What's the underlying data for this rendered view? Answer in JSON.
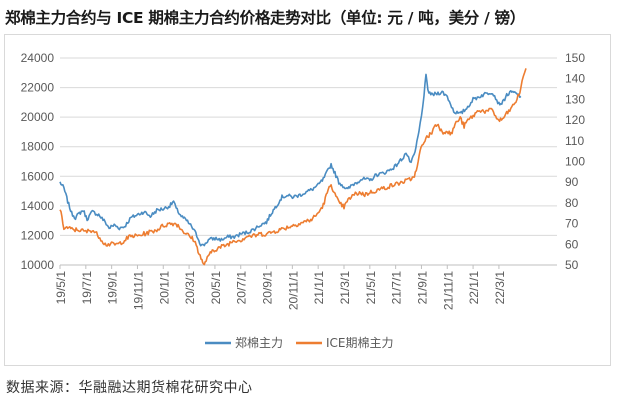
{
  "title": "郑棉主力合约与 ICE 期棉主力合约价格走势对比（单位: 元 / 吨，美分 / 镑）",
  "source": "数据来源：华融融达期货棉花研究中心",
  "colors": {
    "zce": "#4a8cc2",
    "ice": "#ed7d31",
    "grid": "#d9d9d9",
    "text": "#595959"
  },
  "chart_data": {
    "type": "line",
    "title": "郑棉主力合约与 ICE 期棉主力合约价格走势对比（单位: 元 / 吨，美分 / 镑）",
    "xlabel": "",
    "ylabel_left": "元/吨",
    "ylabel_right": "美分/镑",
    "x_ticks": [
      "19/5/1",
      "19/7/1",
      "19/9/1",
      "19/11/1",
      "20/1/1",
      "20/3/1",
      "20/5/1",
      "20/7/1",
      "20/9/1",
      "20/11/1",
      "21/1/1",
      "21/3/1",
      "21/5/1",
      "21/7/1",
      "21/9/1",
      "21/11/1",
      "22/1/1",
      "22/3/1"
    ],
    "x_range_months": [
      0,
      38.5
    ],
    "y_left": {
      "min": 10000,
      "max": 24000,
      "step": 2000,
      "ticks": [
        "10000",
        "12000",
        "14000",
        "16000",
        "18000",
        "20000",
        "22000",
        "24000"
      ]
    },
    "y_right": {
      "min": 50,
      "max": 150,
      "step": 10,
      "ticks": [
        "50",
        "60",
        "70",
        "80",
        "90",
        "100",
        "110",
        "120",
        "130",
        "140",
        "150"
      ]
    },
    "legend": "bottom",
    "series": [
      {
        "name": "郑棉主力",
        "axis": "left",
        "points": [
          [
            0,
            15600
          ],
          [
            0.3,
            15200
          ],
          [
            0.6,
            14300
          ],
          [
            0.9,
            13500
          ],
          [
            1.2,
            13200
          ],
          [
            1.5,
            13500
          ],
          [
            1.8,
            13700
          ],
          [
            2.1,
            13100
          ],
          [
            2.5,
            13600
          ],
          [
            3,
            13400
          ],
          [
            3.5,
            12900
          ],
          [
            3.8,
            12500
          ],
          [
            4.2,
            12700
          ],
          [
            4.6,
            12500
          ],
          [
            5,
            12600
          ],
          [
            5.5,
            13200
          ],
          [
            6,
            13400
          ],
          [
            6.5,
            13600
          ],
          [
            7,
            13300
          ],
          [
            7.5,
            13700
          ],
          [
            8,
            13800
          ],
          [
            8.5,
            14000
          ],
          [
            8.8,
            14300
          ],
          [
            9,
            13800
          ],
          [
            9.4,
            13300
          ],
          [
            9.8,
            13000
          ],
          [
            10.2,
            12600
          ],
          [
            10.6,
            12000
          ],
          [
            10.9,
            11400
          ],
          [
            11.1,
            11300
          ],
          [
            11.5,
            11700
          ],
          [
            12,
            11800
          ],
          [
            12.5,
            11700
          ],
          [
            13,
            11900
          ],
          [
            13.5,
            11900
          ],
          [
            14,
            12100
          ],
          [
            14.5,
            12200
          ],
          [
            15,
            12400
          ],
          [
            15.5,
            12700
          ],
          [
            16,
            12900
          ],
          [
            16.3,
            13400
          ],
          [
            16.6,
            13800
          ],
          [
            16.9,
            14200
          ],
          [
            17.2,
            14600
          ],
          [
            17.6,
            14700
          ],
          [
            18,
            14600
          ],
          [
            18.5,
            14700
          ],
          [
            19,
            14900
          ],
          [
            19.5,
            15100
          ],
          [
            20,
            15400
          ],
          [
            20.4,
            15800
          ],
          [
            20.7,
            16300
          ],
          [
            21,
            16800
          ],
          [
            21.3,
            16200
          ],
          [
            21.6,
            15600
          ],
          [
            22,
            15300
          ],
          [
            22.3,
            15100
          ],
          [
            22.6,
            15400
          ],
          [
            23,
            15600
          ],
          [
            23.3,
            15800
          ],
          [
            23.7,
            15800
          ],
          [
            24,
            15700
          ],
          [
            24.5,
            16100
          ],
          [
            25,
            16200
          ],
          [
            25.5,
            16400
          ],
          [
            26,
            16700
          ],
          [
            26.3,
            17000
          ],
          [
            26.6,
            17300
          ],
          [
            26.8,
            17600
          ],
          [
            27,
            17200
          ],
          [
            27.2,
            16900
          ],
          [
            27.5,
            17600
          ],
          [
            27.8,
            19000
          ],
          [
            28,
            20100
          ],
          [
            28.2,
            21500
          ],
          [
            28.35,
            22800
          ],
          [
            28.5,
            21800
          ],
          [
            28.8,
            21500
          ],
          [
            29.2,
            21600
          ],
          [
            29.6,
            21700
          ],
          [
            30,
            21400
          ],
          [
            30.5,
            20400
          ],
          [
            31,
            20200
          ],
          [
            31.5,
            20600
          ],
          [
            32,
            21200
          ],
          [
            32.5,
            21400
          ],
          [
            33,
            21600
          ],
          [
            33.5,
            21700
          ],
          [
            34,
            20900
          ],
          [
            34.3,
            21000
          ],
          [
            34.6,
            21500
          ],
          [
            35,
            21700
          ],
          [
            35.3,
            21600
          ],
          [
            35.7,
            21400
          ]
        ]
      },
      {
        "name": "ICE期棉主力",
        "axis": "right",
        "points": [
          [
            0,
            77
          ],
          [
            0.3,
            68
          ],
          [
            0.6,
            68
          ],
          [
            1,
            67
          ],
          [
            1.5,
            67
          ],
          [
            2,
            66
          ],
          [
            2.5,
            67
          ],
          [
            3,
            64
          ],
          [
            3.5,
            60
          ],
          [
            4,
            60
          ],
          [
            4.5,
            60
          ],
          [
            5,
            62
          ],
          [
            5.5,
            64
          ],
          [
            6,
            64
          ],
          [
            6.5,
            65
          ],
          [
            7,
            66
          ],
          [
            7.5,
            67
          ],
          [
            8,
            69
          ],
          [
            8.5,
            70
          ],
          [
            9,
            70
          ],
          [
            9.3,
            68
          ],
          [
            9.6,
            66
          ],
          [
            10,
            64
          ],
          [
            10.4,
            62
          ],
          [
            10.7,
            57
          ],
          [
            11,
            52
          ],
          [
            11.1,
            50
          ],
          [
            11.4,
            53
          ],
          [
            11.8,
            57
          ],
          [
            12.2,
            58
          ],
          [
            12.6,
            59
          ],
          [
            13,
            60
          ],
          [
            13.5,
            62
          ],
          [
            14,
            62
          ],
          [
            14.5,
            64
          ],
          [
            15,
            64
          ],
          [
            15.5,
            65
          ],
          [
            16,
            65
          ],
          [
            16.5,
            66
          ],
          [
            17,
            67
          ],
          [
            17.5,
            68
          ],
          [
            18,
            69
          ],
          [
            18.5,
            70
          ],
          [
            19,
            71
          ],
          [
            19.5,
            72
          ],
          [
            20,
            75
          ],
          [
            20.4,
            79
          ],
          [
            20.7,
            85
          ],
          [
            21,
            89
          ],
          [
            21.3,
            84
          ],
          [
            21.6,
            80
          ],
          [
            22,
            78
          ],
          [
            22.4,
            82
          ],
          [
            22.8,
            84
          ],
          [
            23.2,
            85
          ],
          [
            23.6,
            84
          ],
          [
            24,
            85
          ],
          [
            24.5,
            86
          ],
          [
            25,
            87
          ],
          [
            25.5,
            88
          ],
          [
            26,
            89
          ],
          [
            26.5,
            90
          ],
          [
            27,
            91
          ],
          [
            27.3,
            92
          ],
          [
            27.6,
            95
          ],
          [
            27.9,
            105
          ],
          [
            28.2,
            110
          ],
          [
            28.5,
            112
          ],
          [
            28.8,
            114
          ],
          [
            29,
            117
          ],
          [
            29.3,
            118
          ],
          [
            29.6,
            114
          ],
          [
            30,
            115
          ],
          [
            30.3,
            113
          ],
          [
            30.6,
            118
          ],
          [
            31,
            121
          ],
          [
            31.3,
            117
          ],
          [
            31.6,
            120
          ],
          [
            32,
            122
          ],
          [
            32.5,
            125
          ],
          [
            33,
            124
          ],
          [
            33.5,
            125
          ],
          [
            33.9,
            120
          ],
          [
            34.2,
            120
          ],
          [
            34.6,
            123
          ],
          [
            35,
            126
          ],
          [
            35.4,
            130
          ],
          [
            35.7,
            135
          ],
          [
            35.9,
            142
          ],
          [
            36.1,
            145
          ]
        ]
      }
    ]
  }
}
